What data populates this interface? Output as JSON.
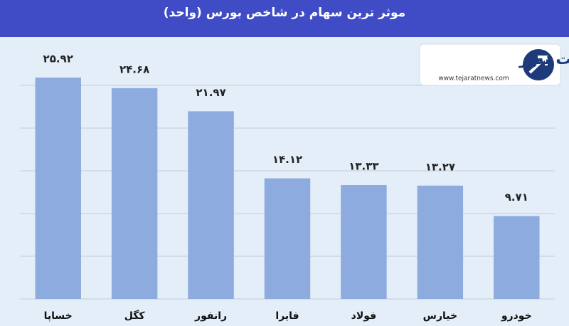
{
  "chart_data": {
    "type": "bar",
    "title": "موثر ترین سهام در شاخص بورس (واحد)",
    "categories": [
      "خساپا",
      "کگل",
      "رانفور",
      "فایرا",
      "فولاد",
      "خیارس",
      "خودرو"
    ],
    "values": [
      25.92,
      24.68,
      21.97,
      14.12,
      13.33,
      13.27,
      9.71
    ],
    "value_labels": [
      "۲۵.۹۲",
      "۲۴.۶۸",
      "۲۱.۹۷",
      "۱۴.۱۲",
      "۱۳.۳۳",
      "۱۳.۲۷",
      "۹.۷۱"
    ],
    "color": "#8eabdf",
    "ylim": [
      0,
      30
    ],
    "yticks": [
      0,
      5,
      10,
      15,
      20,
      25
    ],
    "grid": true
  },
  "logo": {
    "name": "تجارت نیوز",
    "url": "www.tejaratnews.com"
  }
}
